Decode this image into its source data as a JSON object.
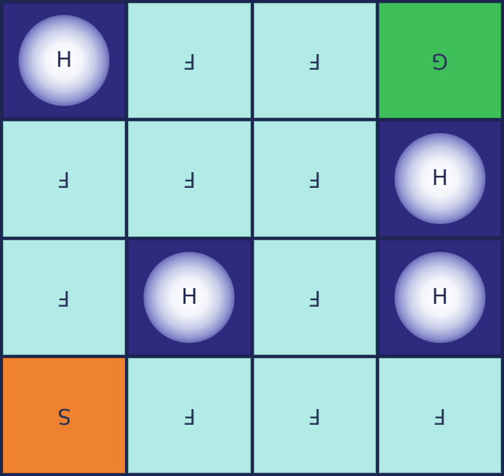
{
  "board": {
    "rows": [
      [
        {
          "type": "hole",
          "label": "H"
        },
        {
          "type": "frozen",
          "label": "F"
        },
        {
          "type": "frozen",
          "label": "F"
        },
        {
          "type": "goal",
          "label": "G"
        }
      ],
      [
        {
          "type": "frozen",
          "label": "F"
        },
        {
          "type": "frozen",
          "label": "F"
        },
        {
          "type": "frozen",
          "label": "F"
        },
        {
          "type": "hole",
          "label": "H"
        }
      ],
      [
        {
          "type": "frozen",
          "label": "F"
        },
        {
          "type": "hole",
          "label": "H"
        },
        {
          "type": "frozen",
          "label": "F"
        },
        {
          "type": "hole",
          "label": "H"
        }
      ],
      [
        {
          "type": "start",
          "label": "S"
        },
        {
          "type": "frozen",
          "label": "F"
        },
        {
          "type": "frozen",
          "label": "F"
        },
        {
          "type": "frozen",
          "label": "F"
        }
      ]
    ]
  },
  "colors": {
    "frozen": "#b2ebe5",
    "hole": "#2e2a7e",
    "start": "#ef8230",
    "goal": "#3fbf59",
    "grid_line": "#1c2650"
  }
}
